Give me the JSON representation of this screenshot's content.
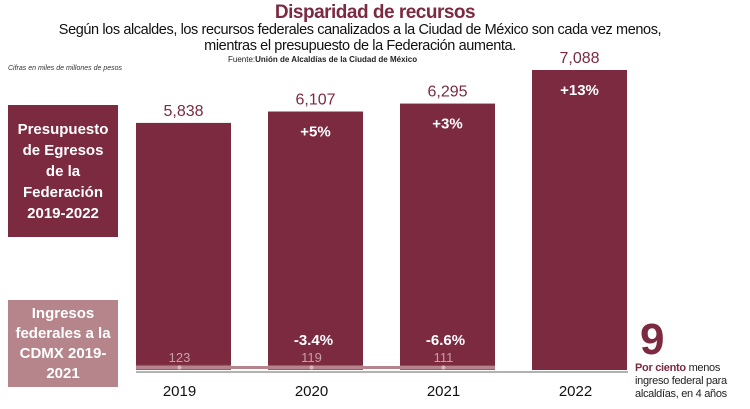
{
  "title": "Disparidad de recursos",
  "subtitle_line1": "Según los alcaldes, los recursos federales canalizados a la Ciudad de México son cada vez menos,",
  "subtitle_line2": "mientras el presupuesto de la Federación aumenta.",
  "source_label": "Fuente:",
  "source": "Unión de Alcaldías de la Ciudad de México",
  "units": "Cifras en miles de millones de pesos",
  "legend_box1": "Presupuesto de Egresos de la Federación 2019-2022",
  "legend_box2": "Ingresos federales a la CDMX 2019-2021",
  "note_number": "9",
  "note_bold": "Por ciento",
  "note_text": "menos ingreso federal para alcaldías, en 4 años",
  "colors": {
    "presupuesto": "#7b2a40",
    "ingresos": "#b5858b"
  },
  "chart_data": {
    "type": "bar",
    "categories": [
      "2019",
      "2020",
      "2021",
      "2022"
    ],
    "series": [
      {
        "name": "Presupuesto de Egresos de la Federación 2019-2022",
        "values": [
          5838,
          6107,
          6295,
          7088
        ],
        "labels": [
          "5,838",
          "6,107",
          "6,295",
          "7,088"
        ],
        "change_labels": [
          "",
          "+5%",
          "+3%",
          "+13%"
        ]
      },
      {
        "name": "Ingresos federales a la CDMX 2019-2021",
        "values": [
          123,
          119,
          111,
          null
        ],
        "labels": [
          "123",
          "119",
          "111",
          ""
        ],
        "change_labels": [
          "",
          "-3.4%",
          "-6.6%",
          ""
        ]
      }
    ],
    "ylim": [
      0,
      7088
    ],
    "grid": false
  }
}
